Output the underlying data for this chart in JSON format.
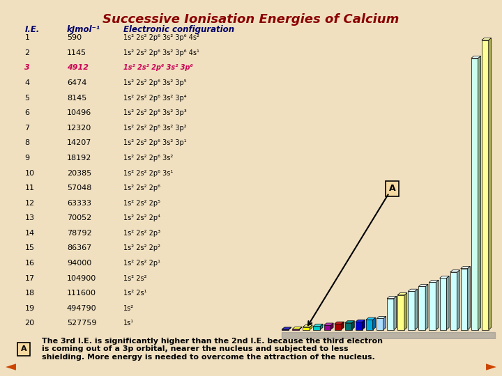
{
  "title": "Successive Ionisation Energies of Calcium",
  "title_color": "#8B0000",
  "bg_color": "#F0E0C0",
  "ie_values": [
    590,
    1145,
    4912,
    6474,
    8145,
    10496,
    12320,
    14207,
    18192,
    20385,
    57048,
    63333,
    70052,
    78792,
    86367,
    94000,
    104900,
    111600,
    494790,
    527759
  ],
  "ie_numbers": [
    1,
    2,
    3,
    4,
    5,
    6,
    7,
    8,
    9,
    10,
    11,
    12,
    13,
    14,
    15,
    16,
    17,
    18,
    19,
    20
  ],
  "configs": [
    "1s² 2s² 2p⁶ 3s² 3p⁶ 4s²",
    "1s² 2s² 2p⁶ 3s² 3p⁶ 4s¹",
    "1s² 2s² 2p⁶ 3s² 3p⁶",
    "1s² 2s² 2p⁶ 3s² 3p⁵",
    "1s² 2s² 2p⁶ 3s² 3p⁴",
    "1s² 2s² 2p⁶ 3s² 3p³",
    "1s² 2s² 2p⁶ 3s² 3p²",
    "1s² 2s² 2p⁶ 3s² 3p¹",
    "1s² 2s² 2p⁶ 3s²",
    "1s² 2s² 2p⁶ 3s¹",
    "1s² 2s² 2p⁶",
    "1s² 2s² 2p⁵",
    "1s² 2s² 2p⁴",
    "1s² 2s² 2p³",
    "1s² 2s² 2p²",
    "1s² 2s² 2p¹",
    "1s² 2s²",
    "1s² 2s¹",
    "1s²",
    "1s¹"
  ],
  "bar_colors_front": [
    "#1010AA",
    "#FF00FF",
    "#FFFF00",
    "#00CCCC",
    "#990099",
    "#AA0000",
    "#007070",
    "#0000CC",
    "#00AADD",
    "#AADDFF",
    "#CCFFFF",
    "#FFFF88",
    "#CCFFFF",
    "#CCFFFF",
    "#CCFFFF",
    "#CCFFFF",
    "#CCFFFF",
    "#CCFFFF",
    "#CCFFEE",
    "#FFFF99"
  ],
  "bar_colors_side": [
    "#000066",
    "#AA0077",
    "#AAAA00",
    "#008888",
    "#660044",
    "#660000",
    "#004444",
    "#000088",
    "#0066AA",
    "#7799CC",
    "#88AAAA",
    "#AAAA44",
    "#88AAAA",
    "#88AAAA",
    "#88AAAA",
    "#88AAAA",
    "#88AAAA",
    "#88AAAA",
    "#88AA88",
    "#AAAA55"
  ],
  "bar_colors_top": [
    "#3030CC",
    "#FFFF44",
    "#FFFF88",
    "#44DDDD",
    "#CC44CC",
    "#CC2222",
    "#009999",
    "#2222EE",
    "#22CCFF",
    "#CCEEFF",
    "#EEFFFF",
    "#FFFF99",
    "#EEFFFF",
    "#EEFFFF",
    "#EEFFFF",
    "#EEFFFF",
    "#EEFFFF",
    "#EEFFFF",
    "#EEFFFF",
    "#FFFFBB"
  ],
  "highlight_row": 3,
  "highlight_color": "#CC0055",
  "bottom_text_line1": "The 3rd I.E. is significantly higher than the 2nd I.E. because the third electron",
  "bottom_text_line2": "is coming out of a 3p orbital, nearer the nucleus and subjected to less",
  "bottom_text_line3": "shielding. More energy is needed to overcome the attraction of the nucleus.",
  "col1_header": "I.E.",
  "col2_header": "kJmol⁻¹",
  "col3_header": "Electronic configuration"
}
